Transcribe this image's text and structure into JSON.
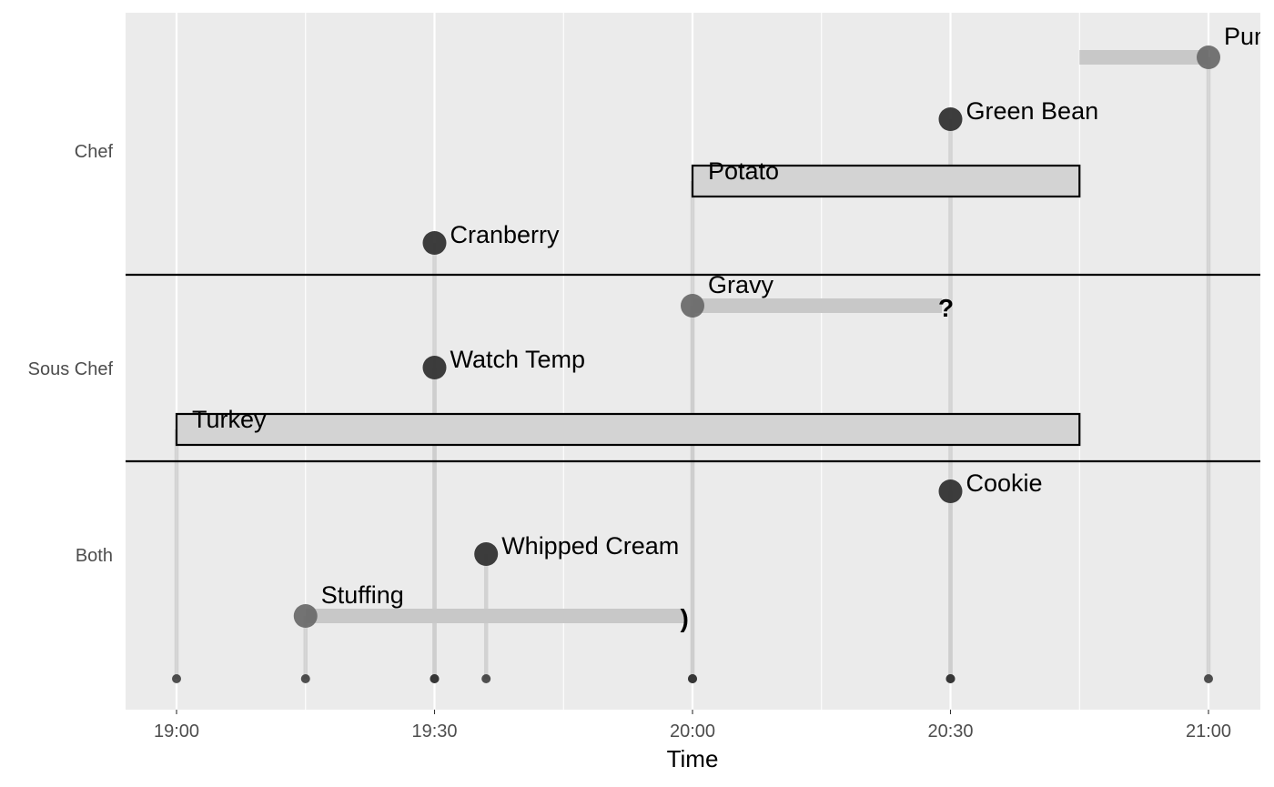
{
  "chart_data": {
    "type": "timeline",
    "xlabel": "Time",
    "x_ticks": [
      "19:00",
      "19:30",
      "20:00",
      "20:30",
      "21:00"
    ],
    "x_range": [
      "18:54",
      "21:06"
    ],
    "y_groups": [
      "Chef",
      "Sous Chef",
      "Both"
    ],
    "grid": true,
    "colors": {
      "panel": "#ebebeb",
      "gridline": "#ffffff",
      "separator": "#000000",
      "bar_fill": "#d3d3d3",
      "uncertain_bar": "#c8c8c8",
      "guide_line": "#cccccc",
      "point_solid": "#333333",
      "point_faded": "#666666"
    },
    "events": [
      {
        "label": "Pumpkin Pie",
        "group": "Chef",
        "start": "21:00",
        "end": "20:45",
        "style": "uncertain",
        "end_mark": ""
      },
      {
        "label": "Green Bean",
        "group": "Chef",
        "start": "20:30",
        "style": "point"
      },
      {
        "label": "Potato",
        "group": "Chef",
        "start": "20:00",
        "end": "20:45",
        "style": "box"
      },
      {
        "label": "Cranberry",
        "group": "Chef",
        "start": "19:30",
        "style": "point"
      },
      {
        "label": "Gravy",
        "group": "Sous Chef",
        "start": "20:00",
        "end": "20:29",
        "style": "uncertain",
        "end_mark": "?"
      },
      {
        "label": "Watch Temp",
        "group": "Sous Chef",
        "start": "19:30",
        "style": "point"
      },
      {
        "label": "Turkey",
        "group": "Sous Chef",
        "start": "19:00",
        "end": "20:45",
        "style": "box"
      },
      {
        "label": "Cookie",
        "group": "Both",
        "start": "20:30",
        "style": "point"
      },
      {
        "label": "Whipped Cream",
        "group": "Both",
        "start": "19:36",
        "style": "point"
      },
      {
        "label": "Stuffing",
        "group": "Both",
        "start": "19:15",
        "end": "19:59",
        "style": "uncertain",
        "end_mark": ")"
      }
    ]
  }
}
